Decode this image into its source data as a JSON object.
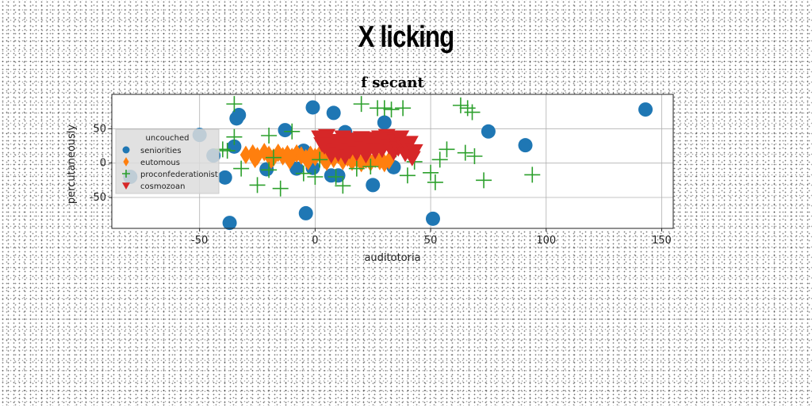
{
  "page_title": "X licking",
  "chart_data": {
    "type": "scatter",
    "title": "f secant",
    "xlabel": "auditotoria",
    "ylabel": "percutaneously",
    "xlim": [
      -88,
      155
    ],
    "ylim": [
      -95,
      100
    ],
    "xticks": [
      -50,
      0,
      50,
      100,
      150
    ],
    "yticks": [
      -50,
      0,
      50
    ],
    "grid": true,
    "legend": {
      "title": "uncouched",
      "placement": "center-left"
    },
    "series": [
      {
        "name": "seniorities",
        "marker": "circle",
        "color": "#1f77b4",
        "points": [
          [
            -50,
            41
          ],
          [
            -44,
            11
          ],
          [
            -39,
            -21
          ],
          [
            -37,
            -87
          ],
          [
            -35,
            24
          ],
          [
            -34,
            65
          ],
          [
            -33,
            70
          ],
          [
            -21,
            -9
          ],
          [
            -13,
            48
          ],
          [
            -8,
            -8
          ],
          [
            -5,
            18
          ],
          [
            -4,
            -73
          ],
          [
            -1,
            -7
          ],
          [
            -1,
            81
          ],
          [
            7,
            -18
          ],
          [
            8,
            73
          ],
          [
            10,
            -18
          ],
          [
            13,
            45
          ],
          [
            25,
            -32
          ],
          [
            30,
            59
          ],
          [
            34,
            -6
          ],
          [
            51,
            -81
          ],
          [
            75,
            46
          ],
          [
            91,
            26
          ],
          [
            143,
            78
          ],
          [
            -80,
            -20
          ]
        ]
      },
      {
        "name": "eutomous",
        "marker": "diamond",
        "color": "#ff7f0e",
        "points": [
          [
            -30,
            12
          ],
          [
            -27,
            14
          ],
          [
            -25,
            10
          ],
          [
            -22,
            16
          ],
          [
            -20,
            12
          ],
          [
            -18,
            8
          ],
          [
            -16,
            15
          ],
          [
            -14,
            10
          ],
          [
            -12,
            13
          ],
          [
            -10,
            9
          ],
          [
            -8,
            14
          ],
          [
            -6,
            11
          ],
          [
            -4,
            7
          ],
          [
            -2,
            12
          ],
          [
            0,
            9
          ],
          [
            2,
            13
          ],
          [
            4,
            5
          ],
          [
            6,
            10
          ],
          [
            8,
            6
          ],
          [
            10,
            12
          ],
          [
            12,
            3
          ],
          [
            14,
            8
          ],
          [
            16,
            2
          ],
          [
            18,
            6
          ],
          [
            20,
            0
          ],
          [
            22,
            5
          ],
          [
            24,
            1
          ],
          [
            26,
            6
          ],
          [
            28,
            3
          ],
          [
            30,
            0
          ],
          [
            32,
            4
          ],
          [
            -26,
            6
          ],
          [
            -19,
            5
          ],
          [
            -11,
            4
          ],
          [
            -3,
            3
          ],
          [
            5,
            2
          ]
        ]
      },
      {
        "name": "proconfederationist",
        "marker": "plus",
        "color": "#2ca02c",
        "points": [
          [
            -35,
            86
          ],
          [
            -38,
            18
          ],
          [
            -35,
            38
          ],
          [
            -32,
            -8
          ],
          [
            -25,
            -32
          ],
          [
            -20,
            40
          ],
          [
            -20,
            -10
          ],
          [
            -15,
            -37
          ],
          [
            -10,
            46
          ],
          [
            -5,
            -15
          ],
          [
            0,
            -20
          ],
          [
            2,
            5
          ],
          [
            9,
            -20
          ],
          [
            12,
            -33
          ],
          [
            18,
            -8
          ],
          [
            20,
            86
          ],
          [
            24,
            -5
          ],
          [
            27,
            80
          ],
          [
            30,
            80
          ],
          [
            33,
            78
          ],
          [
            38,
            80
          ],
          [
            40,
            -18
          ],
          [
            43,
            2
          ],
          [
            50,
            -14
          ],
          [
            52,
            -28
          ],
          [
            54,
            5
          ],
          [
            57,
            20
          ],
          [
            63,
            84
          ],
          [
            65,
            15
          ],
          [
            66,
            80
          ],
          [
            68,
            74
          ],
          [
            69,
            10
          ],
          [
            73,
            -25
          ],
          [
            94,
            -17
          ],
          [
            -40,
            20
          ],
          [
            -18,
            8
          ],
          [
            15,
            30
          ],
          [
            35,
            20
          ]
        ]
      },
      {
        "name": "cosmozoan",
        "marker": "triangle-down",
        "color": "#d62728",
        "points": [
          [
            2,
            38
          ],
          [
            4,
            25
          ],
          [
            5,
            40
          ],
          [
            6,
            30
          ],
          [
            8,
            20
          ],
          [
            9,
            33
          ],
          [
            10,
            14
          ],
          [
            11,
            25
          ],
          [
            12,
            38
          ],
          [
            13,
            10
          ],
          [
            14,
            28
          ],
          [
            15,
            18
          ],
          [
            16,
            35
          ],
          [
            17,
            24
          ],
          [
            18,
            15
          ],
          [
            19,
            30
          ],
          [
            20,
            37
          ],
          [
            21,
            22
          ],
          [
            22,
            12
          ],
          [
            23,
            30
          ],
          [
            24,
            24
          ],
          [
            25,
            36
          ],
          [
            26,
            18
          ],
          [
            27,
            28
          ],
          [
            28,
            38
          ],
          [
            29,
            20
          ],
          [
            30,
            30
          ],
          [
            31,
            40
          ],
          [
            32,
            25
          ],
          [
            33,
            35
          ],
          [
            34,
            16
          ],
          [
            35,
            32
          ],
          [
            36,
            22
          ],
          [
            37,
            38
          ],
          [
            38,
            28
          ],
          [
            39,
            14
          ],
          [
            40,
            24
          ],
          [
            41,
            30
          ],
          [
            42,
            8
          ],
          [
            43,
            18
          ],
          [
            7,
            12
          ],
          [
            3,
            28
          ]
        ]
      }
    ]
  }
}
